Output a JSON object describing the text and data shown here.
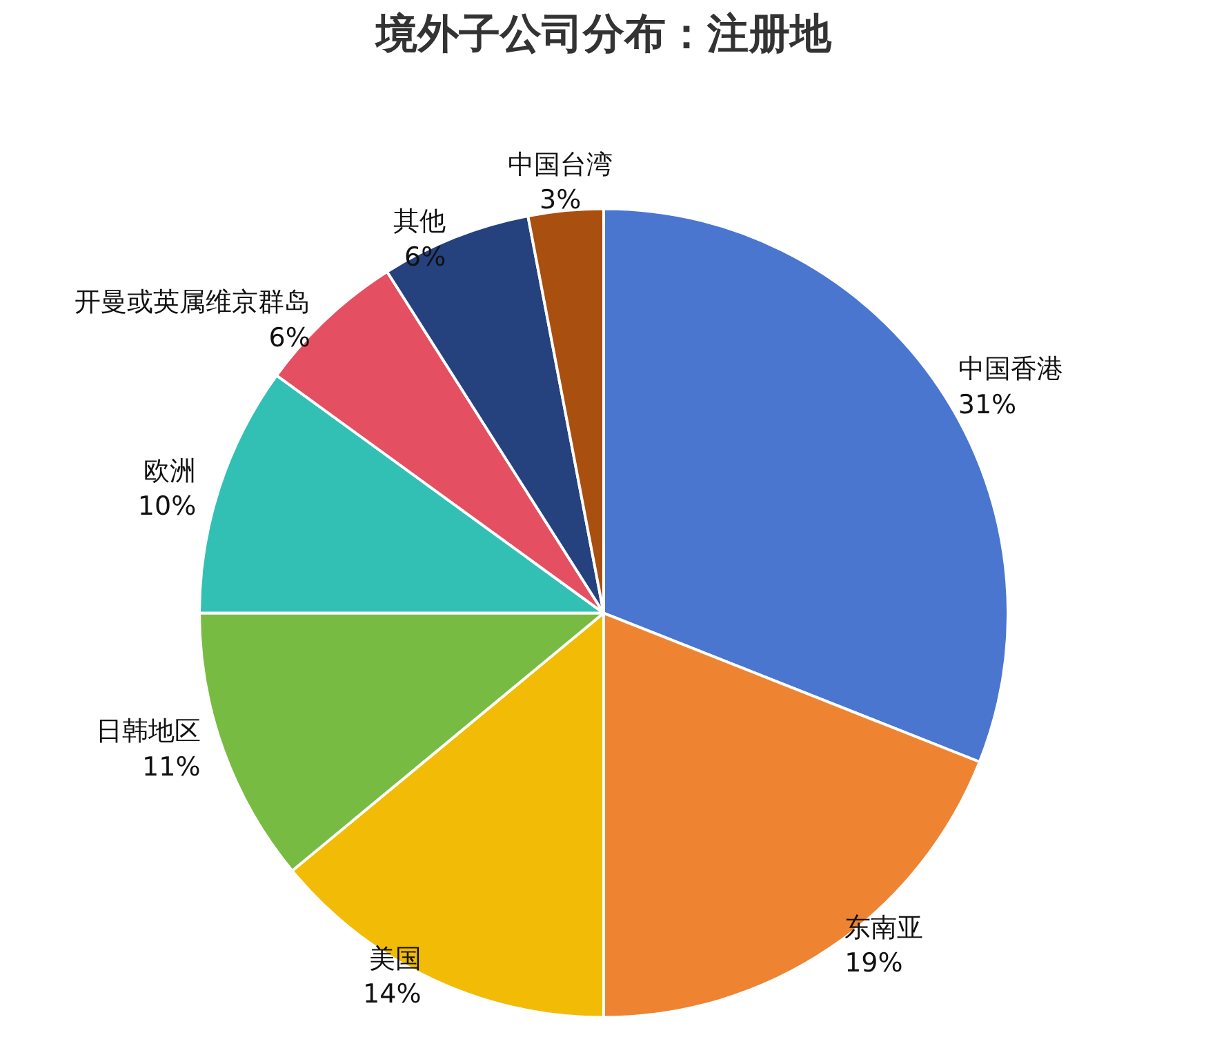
{
  "chart_data": {
    "type": "pie",
    "title": "境外子公司分布：注册地",
    "categories": [
      "中国香港",
      "东南亚",
      "美国",
      "日韩地区",
      "欧洲",
      "开曼或英属维京群岛",
      "其他",
      "中国台湾"
    ],
    "values": [
      31,
      19,
      14,
      11,
      10,
      6,
      6,
      3
    ],
    "value_labels": [
      "31%",
      "19%",
      "14%",
      "11%",
      "10%",
      "6%",
      "6%",
      "3%"
    ],
    "colors": [
      "#4a76cf",
      "#ee8432",
      "#f2bb05",
      "#77bb43",
      "#33c0b4",
      "#e44f62",
      "#25427e",
      "#a94f10"
    ],
    "legend": false
  }
}
